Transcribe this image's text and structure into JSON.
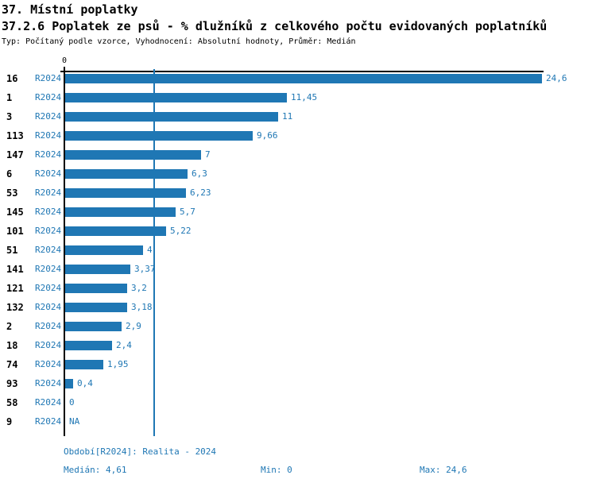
{
  "header": {
    "title1": "37. Místní poplatky",
    "title2": "37.2.6 Poplatek ze psů - % dlužníků z celkového počtu evidovaných poplatníků",
    "subtitle": "Typ: Počítaný podle vzorce, Vyhodnocení: Absolutní hodnoty, Průměr: Medián"
  },
  "chart_data": {
    "type": "bar",
    "orientation": "horizontal",
    "title": "37.2.6 Poplatek ze psů - % dlužníků z celkového počtu evidovaných poplatníků",
    "series_label": "R2024",
    "axis_top_tick": "0",
    "xlim": [
      0,
      24.6
    ],
    "median_value": 4.61,
    "grid": "single-median-gridline",
    "legend_position": "none",
    "categories": [
      "16",
      "1",
      "3",
      "113",
      "147",
      "6",
      "53",
      "145",
      "101",
      "51",
      "141",
      "121",
      "132",
      "2",
      "18",
      "74",
      "93",
      "58",
      "9"
    ],
    "values": [
      24.6,
      11.45,
      11,
      9.66,
      7,
      6.3,
      6.23,
      5.7,
      5.22,
      4,
      3.37,
      3.2,
      3.18,
      2.9,
      2.4,
      1.95,
      0.4,
      0,
      null
    ],
    "value_labels": [
      "24,6",
      "11,45",
      "11",
      "9,66",
      "7",
      "6,3",
      "6,23",
      "5,7",
      "5,22",
      "4",
      "3,37",
      "3,2",
      "3,18",
      "2,9",
      "2,4",
      "1,95",
      "0,4",
      "0",
      "NA"
    ]
  },
  "footer": {
    "period": "Období[R2024]: Realita - 2024",
    "median": "Medián: 4,61",
    "min": "Min: 0",
    "max": "Max: 24,6"
  },
  "colors": {
    "bar": "#1f77b4",
    "blue_text": "#1f77b4",
    "axis": "#000000",
    "background": "#ffffff"
  }
}
